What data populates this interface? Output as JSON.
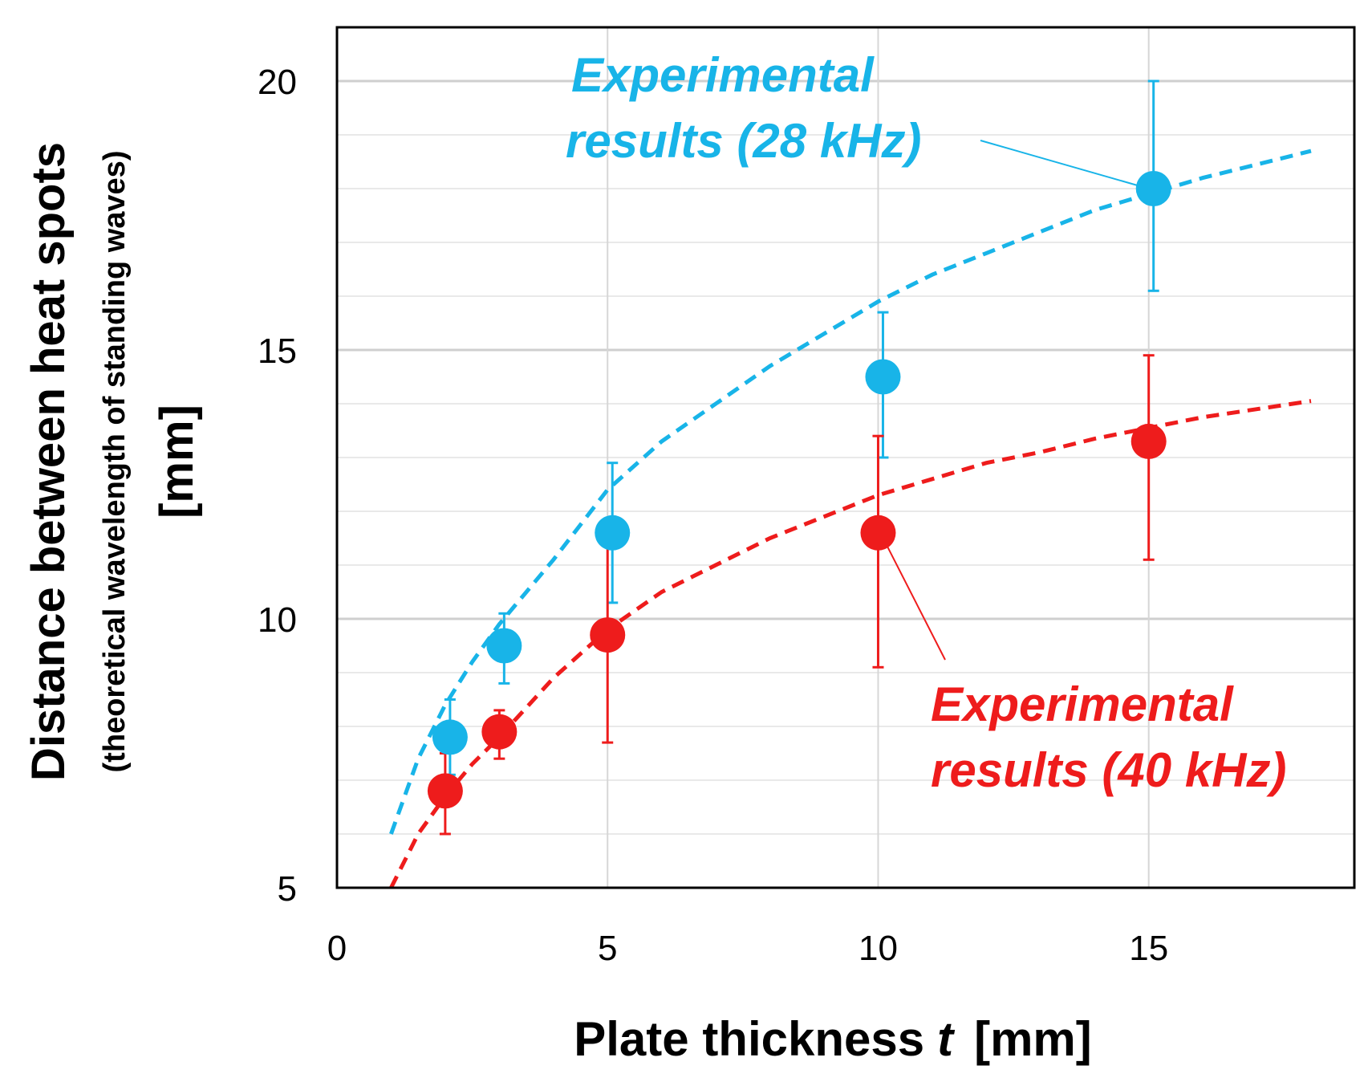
{
  "chart_data": {
    "type": "scatter",
    "title": "",
    "xlabel": "Plate thickness",
    "xlabel_var": "t",
    "xlabel_unit": "[mm]",
    "ylabel_main": "Distance between heat spots",
    "ylabel_sub": "(theoretical wavelength of standing waves)",
    "ylabel_unit": "[mm]",
    "xlim": [
      0,
      18.8
    ],
    "ylim": [
      5,
      21
    ],
    "x_ticks": [
      0,
      5,
      10,
      15
    ],
    "y_ticks": [
      5,
      10,
      15,
      20
    ],
    "minor_y_step": 1,
    "grid": true,
    "series": [
      {
        "name": "Experimental results (28 kHz)",
        "label_line1": "Experimental",
        "label_line2": "results (28 kHz)",
        "color": "#18b4e8",
        "points": [
          {
            "x": 2,
            "y": 7.8,
            "lo": 7.1,
            "hi": 8.5
          },
          {
            "x": 3,
            "y": 9.5,
            "lo": 8.8,
            "hi": 10.1
          },
          {
            "x": 5,
            "y": 11.6,
            "lo": 10.3,
            "hi": 12.9
          },
          {
            "x": 10,
            "y": 14.5,
            "lo": 13.0,
            "hi": 15.7
          },
          {
            "x": 15,
            "y": 18.0,
            "lo": 16.1,
            "hi": 20.0
          }
        ],
        "fit": {
          "x": [
            1,
            1.5,
            2,
            2.5,
            3,
            4,
            5,
            6,
            7,
            8,
            9,
            10,
            11,
            12,
            13,
            14,
            15,
            16,
            17,
            18
          ],
          "y": [
            6.0,
            7.4,
            8.4,
            9.2,
            9.9,
            11.1,
            12.4,
            13.3,
            14.0,
            14.7,
            15.3,
            15.9,
            16.4,
            16.8,
            17.2,
            17.6,
            17.9,
            18.2,
            18.45,
            18.7
          ]
        }
      },
      {
        "name": "Experimental results (40 kHz)",
        "label_line1": "Experimental",
        "label_line2": "results (40 kHz)",
        "color": "#ee1c1c",
        "points": [
          {
            "x": 2,
            "y": 6.8,
            "lo": 6.0,
            "hi": 7.5
          },
          {
            "x": 3,
            "y": 7.9,
            "lo": 7.4,
            "hi": 8.3
          },
          {
            "x": 5,
            "y": 9.7,
            "lo": 7.7,
            "hi": 11.5
          },
          {
            "x": 10,
            "y": 11.6,
            "lo": 9.1,
            "hi": 13.4
          },
          {
            "x": 15,
            "y": 13.3,
            "lo": 11.1,
            "hi": 14.9
          }
        ],
        "fit": {
          "x": [
            1,
            1.5,
            2,
            2.5,
            3,
            4,
            5,
            6,
            7,
            8,
            9,
            10,
            11,
            12,
            13,
            14,
            15,
            16,
            17,
            18
          ],
          "y": [
            5.0,
            6.0,
            6.7,
            7.3,
            7.8,
            8.9,
            9.8,
            10.5,
            11.0,
            11.5,
            11.9,
            12.3,
            12.6,
            12.9,
            13.1,
            13.35,
            13.55,
            13.75,
            13.9,
            14.05
          ]
        }
      }
    ]
  }
}
